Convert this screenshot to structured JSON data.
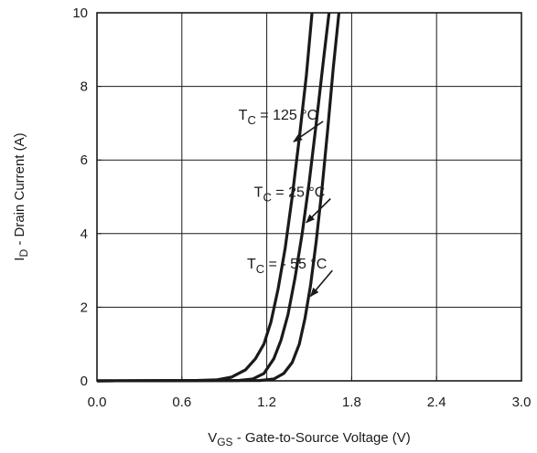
{
  "chart_data": {
    "type": "line",
    "title": "",
    "xlabel": {
      "main": "V",
      "sub": "GS",
      "rest": " - Gate-to-Source Voltage (V)"
    },
    "ylabel": {
      "main": "I",
      "sub": "D",
      "rest": " - Drain Current (A)"
    },
    "xlim": [
      0,
      3.0
    ],
    "ylim": [
      0,
      10
    ],
    "x_ticks": [
      0.0,
      0.6,
      1.2,
      1.8,
      2.4,
      3.0
    ],
    "x_tick_labels": [
      "0.0",
      "0.6",
      "1.2",
      "1.8",
      "2.4",
      "3.0"
    ],
    "y_ticks": [
      0,
      2,
      4,
      6,
      8,
      10
    ],
    "y_tick_labels": [
      "0",
      "2",
      "4",
      "6",
      "8",
      "10"
    ],
    "grid": true,
    "series": [
      {
        "annotation": {
          "main": "T",
          "sub": "C",
          "rest": " = 125 °C"
        },
        "points": [
          [
            0,
            0
          ],
          [
            0.7,
            0.01
          ],
          [
            0.85,
            0.03
          ],
          [
            0.95,
            0.1
          ],
          [
            1.05,
            0.3
          ],
          [
            1.12,
            0.6
          ],
          [
            1.18,
            1.0
          ],
          [
            1.23,
            1.6
          ],
          [
            1.28,
            2.5
          ],
          [
            1.33,
            3.6
          ],
          [
            1.38,
            5.0
          ],
          [
            1.43,
            6.6
          ],
          [
            1.48,
            8.3
          ],
          [
            1.52,
            10.0
          ]
        ],
        "annotation_anchor": [
          1.0,
          7.1
        ],
        "arrow_to": [
          1.39,
          6.5
        ]
      },
      {
        "annotation": {
          "main": "T",
          "sub": "C",
          "rest": " = 25 °C"
        },
        "points": [
          [
            0,
            0
          ],
          [
            1.0,
            0.01
          ],
          [
            1.1,
            0.05
          ],
          [
            1.18,
            0.2
          ],
          [
            1.25,
            0.6
          ],
          [
            1.3,
            1.1
          ],
          [
            1.35,
            1.8
          ],
          [
            1.4,
            2.8
          ],
          [
            1.45,
            4.0
          ],
          [
            1.5,
            5.4
          ],
          [
            1.55,
            7.0
          ],
          [
            1.6,
            8.7
          ],
          [
            1.64,
            10.0
          ]
        ],
        "annotation_anchor": [
          1.11,
          5.0
        ],
        "arrow_to": [
          1.48,
          4.3
        ]
      },
      {
        "annotation": {
          "main": "T",
          "sub": "C",
          "rest": " = - 55 °C"
        },
        "points": [
          [
            0,
            0
          ],
          [
            1.15,
            0.01
          ],
          [
            1.25,
            0.05
          ],
          [
            1.32,
            0.2
          ],
          [
            1.38,
            0.5
          ],
          [
            1.43,
            1.0
          ],
          [
            1.47,
            1.7
          ],
          [
            1.51,
            2.6
          ],
          [
            1.55,
            3.8
          ],
          [
            1.59,
            5.2
          ],
          [
            1.63,
            6.8
          ],
          [
            1.67,
            8.5
          ],
          [
            1.71,
            10.0
          ]
        ],
        "annotation_anchor": [
          1.06,
          3.05
        ],
        "arrow_to": [
          1.51,
          2.3
        ]
      }
    ]
  }
}
